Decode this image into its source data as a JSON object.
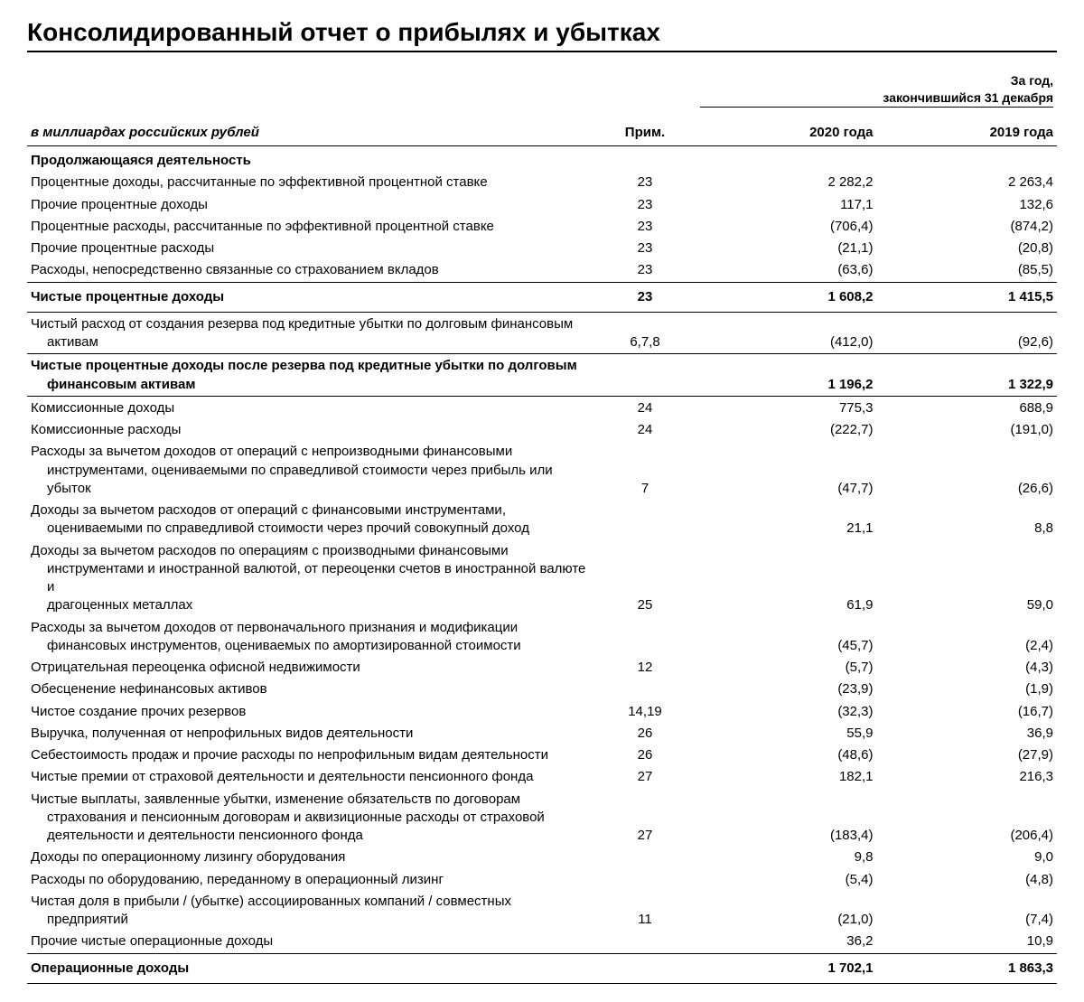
{
  "title": "Консолидированный отчет о прибылях и убытках",
  "period_header_line1": "За год,",
  "period_header_line2": "закончившийся 31 декабря",
  "unit_label": "в миллиардах российских рублей",
  "columns": {
    "note": "Прим.",
    "year1": "2020 года",
    "year2": "2019 года"
  },
  "sections": {
    "continuing": "Продолжающаяся деятельность"
  },
  "rows": {
    "r1": {
      "label": "Процентные доходы, рассчитанные по эффективной процентной ставке",
      "note": "23",
      "y1": "2 282,2",
      "y2": "2 263,4"
    },
    "r2": {
      "label": "Прочие процентные доходы",
      "note": "23",
      "y1": "117,1",
      "y2": "132,6"
    },
    "r3": {
      "label": "Процентные расходы, рассчитанные по эффективной процентной ставке",
      "note": "23",
      "y1": "(706,4)",
      "y2": "(874,2)"
    },
    "r4": {
      "label": "Прочие процентные расходы",
      "note": "23",
      "y1": "(21,1)",
      "y2": "(20,8)"
    },
    "r5": {
      "label": "Расходы, непосредственно связанные со страхованием вкладов",
      "note": "23",
      "y1": "(63,6)",
      "y2": "(85,5)"
    },
    "s1": {
      "label": "Чистые процентные доходы",
      "note": "23",
      "y1": "1 608,2",
      "y2": "1 415,5"
    },
    "r6": {
      "label1": "Чистый расход от создания резерва под кредитные убытки по долговым финансовым",
      "label2": "активам",
      "note": "6,7,8",
      "y1": "(412,0)",
      "y2": "(92,6)"
    },
    "s2": {
      "label1": "Чистые процентные доходы после резерва под кредитные убытки по долговым",
      "label2": "финансовым активам",
      "note": "",
      "y1": "1 196,2",
      "y2": "1 322,9"
    },
    "r7": {
      "label": "Комиссионные доходы",
      "note": "24",
      "y1": "775,3",
      "y2": "688,9"
    },
    "r8": {
      "label": "Комиссионные расходы",
      "note": "24",
      "y1": "(222,7)",
      "y2": "(191,0)"
    },
    "r9": {
      "label1": "Расходы за вычетом доходов от операций с непроизводными финансовыми",
      "label2": "инструментами, оцениваемыми по справедливой стоимости через прибыль или",
      "label3": "убыток",
      "note": "7",
      "y1": "(47,7)",
      "y2": "(26,6)"
    },
    "r10": {
      "label1": "Доходы за вычетом расходов от операций с финансовыми инструментами,",
      "label2": "оцениваемыми по справедливой стоимости через прочий совокупный доход",
      "note": "",
      "y1": "21,1",
      "y2": "8,8"
    },
    "r11": {
      "label1": "Доходы за вычетом расходов по операциям с производными финансовыми",
      "label2": "инструментами и иностранной валютой, от переоценки счетов в иностранной валюте и",
      "label3": "драгоценных металлах",
      "note": "25",
      "y1": "61,9",
      "y2": "59,0"
    },
    "r12": {
      "label1": "Расходы за вычетом доходов от первоначального признания и модификации",
      "label2": "финансовых инструментов, оцениваемых по амортизированной стоимости",
      "note": "",
      "y1": "(45,7)",
      "y2": "(2,4)"
    },
    "r13": {
      "label": "Отрицательная переоценка офисной недвижимости",
      "note": "12",
      "y1": "(5,7)",
      "y2": "(4,3)"
    },
    "r14": {
      "label": "Обесценение нефинансовых активов",
      "note": "",
      "y1": "(23,9)",
      "y2": "(1,9)"
    },
    "r15": {
      "label": "Чистое создание прочих резервов",
      "note": "14,19",
      "y1": "(32,3)",
      "y2": "(16,7)"
    },
    "r16": {
      "label": "Выручка, полученная от непрофильных видов деятельности",
      "note": "26",
      "y1": "55,9",
      "y2": "36,9"
    },
    "r17": {
      "label": "Себестоимость продаж и прочие расходы по непрофильным видам деятельности",
      "note": "26",
      "y1": "(48,6)",
      "y2": "(27,9)"
    },
    "r18": {
      "label": "Чистые премии от страховой деятельности и деятельности пенсионного фонда",
      "note": "27",
      "y1": "182,1",
      "y2": "216,3"
    },
    "r19": {
      "label1": "Чистые выплаты, заявленные убытки, изменение обязательств по договорам",
      "label2": "страхования и пенсионным договорам и аквизиционные расходы от страховой",
      "label3": "деятельности и деятельности пенсионного фонда",
      "note": "27",
      "y1": "(183,4)",
      "y2": "(206,4)"
    },
    "r20": {
      "label": "Доходы по операционному лизингу оборудования",
      "note": "",
      "y1": "9,8",
      "y2": "9,0"
    },
    "r21": {
      "label": "Расходы по оборудованию, переданному в операционный лизинг",
      "note": "",
      "y1": "(5,4)",
      "y2": "(4,8)"
    },
    "r22": {
      "label1": "Чистая доля в прибыли / (убытке) ассоциированных компаний / совместных",
      "label2": "предприятий",
      "note": "11",
      "y1": "(21,0)",
      "y2": "(7,4)"
    },
    "r23": {
      "label": "Прочие чистые операционные доходы",
      "note": "",
      "y1": "36,2",
      "y2": "10,9"
    },
    "s3": {
      "label": "Операционные доходы",
      "note": "",
      "y1": "1 702,1",
      "y2": "1 863,3"
    }
  },
  "style": {
    "font_family": "Arial, Helvetica, sans-serif",
    "title_fontsize": 28,
    "body_fontsize": 15,
    "text_color": "#000000",
    "background_color": "#ffffff",
    "rule_color": "#000000",
    "col_widths_pct": [
      55,
      10,
      17.5,
      17.5
    ]
  }
}
